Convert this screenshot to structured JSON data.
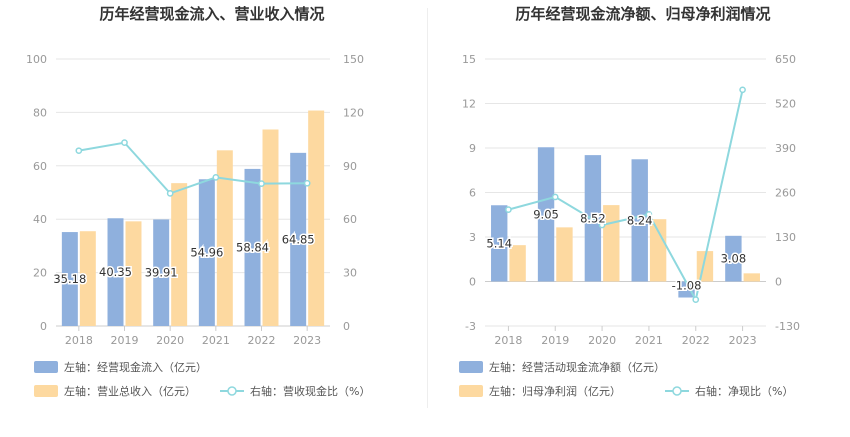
{
  "colors": {
    "bar_primary": "#8fb0dd",
    "bar_secondary": "#fdd9a0",
    "line": "#8ed8de",
    "axis_text": "#999999",
    "title_text": "#333333",
    "grid": "#e6e6e6"
  },
  "chart_data": [
    {
      "type": "bar",
      "title": "历年经营现金流入、营业收入情况",
      "categories": [
        "2018",
        "2019",
        "2020",
        "2021",
        "2022",
        "2023"
      ],
      "left_axis": {
        "ylim": [
          0,
          100
        ],
        "ticks": [
          "0",
          "20",
          "40",
          "60",
          "80",
          "100"
        ]
      },
      "right_axis": {
        "ylim": [
          0,
          150
        ],
        "ticks": [
          "0",
          "30",
          "60",
          "90",
          "120",
          "150"
        ]
      },
      "series": [
        {
          "name": "左轴：经营现金流入（亿元）",
          "kind": "bar",
          "axis": "left",
          "values": [
            35.18,
            40.35,
            39.91,
            54.96,
            58.84,
            64.85
          ],
          "labels": [
            "35.18",
            "40.35",
            "39.91",
            "54.96",
            "58.84",
            "64.85"
          ]
        },
        {
          "name": "左轴：营业总收入（亿元）",
          "kind": "bar",
          "axis": "left",
          "values": [
            35.5,
            39.2,
            53.5,
            65.8,
            73.6,
            80.7
          ]
        },
        {
          "name": "右轴：营收现金比（%）",
          "kind": "line",
          "axis": "right",
          "values": [
            98.5,
            103.0,
            74.5,
            83.5,
            80.0,
            80.2
          ]
        }
      ],
      "legend": [
        "左轴：经营现金流入（亿元）",
        "左轴：营业总收入（亿元）",
        "右轴：营收现金比（%）"
      ]
    },
    {
      "type": "bar",
      "title": "历年经营现金流净额、归母净利润情况",
      "categories": [
        "2018",
        "2019",
        "2020",
        "2021",
        "2022",
        "2023"
      ],
      "left_axis": {
        "ylim": [
          -3,
          15
        ],
        "ticks": [
          "-3",
          "0",
          "3",
          "6",
          "9",
          "12",
          "15"
        ]
      },
      "right_axis": {
        "ylim": [
          -130,
          650
        ],
        "ticks": [
          "-130",
          "0",
          "130",
          "260",
          "390",
          "520",
          "650"
        ]
      },
      "series": [
        {
          "name": "左轴：经营活动现金流净额（亿元）",
          "kind": "bar",
          "axis": "left",
          "values": [
            5.14,
            9.05,
            8.52,
            8.24,
            -1.08,
            3.08
          ],
          "labels": [
            "5.14",
            "9.05",
            "8.52",
            "8.24",
            "-1.08",
            "3.08"
          ]
        },
        {
          "name": "左轴：归母净利润（亿元）",
          "kind": "bar",
          "axis": "left",
          "values": [
            2.45,
            3.65,
            5.15,
            4.2,
            2.05,
            0.55
          ]
        },
        {
          "name": "右轴：净现比（%）",
          "kind": "line",
          "axis": "right",
          "values": [
            210,
            247,
            165,
            196,
            -53,
            560
          ]
        }
      ],
      "legend": [
        "左轴：经营活动现金流净额（亿元）",
        "左轴：归母净利润（亿元）",
        "右轴：净现比（%）"
      ]
    }
  ]
}
